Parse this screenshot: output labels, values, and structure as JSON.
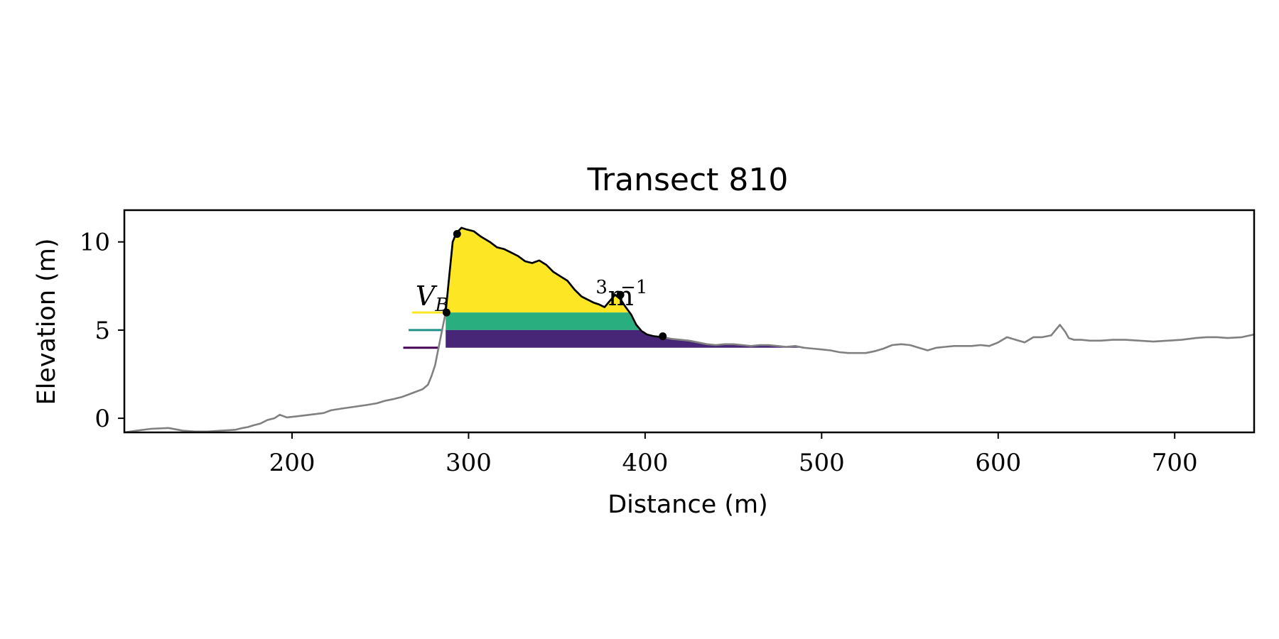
{
  "chart_data": {
    "type": "area",
    "title": "Transect 810",
    "xlabel": "Distance (m)",
    "ylabel": "Elevation (m)",
    "xlim": [
      105,
      745
    ],
    "ylim": [
      -0.8,
      11.8
    ],
    "x_ticks": [
      200,
      300,
      400,
      500,
      600,
      700
    ],
    "y_ticks": [
      0,
      5,
      10
    ],
    "grid": false,
    "annotations": [
      {
        "text": "V",
        "subscript": "B",
        "x": 270,
        "y": 6.4
      },
      {
        "text": "3",
        "x": 372,
        "y": 7.1
      },
      {
        "text": "m",
        "x": 379,
        "y": 6.4
      },
      {
        "text": "−1",
        "x": 386,
        "y": 7.1
      }
    ],
    "levels": [
      {
        "y": 6.0,
        "x_start": 268,
        "color": "#fde725"
      },
      {
        "y": 5.0,
        "x_start": 266,
        "color": "#21918c"
      },
      {
        "y": 4.0,
        "x_start": 263,
        "color": "#440154"
      }
    ],
    "bands": [
      {
        "from": 6.0,
        "to": null,
        "x_range": [
          287,
          400
        ],
        "color": "#fde725"
      },
      {
        "from": 5.0,
        "to": 6.0,
        "x_range": [
          287,
          400
        ],
        "color": "#29af7f"
      },
      {
        "from": 4.0,
        "to": 5.0,
        "x_range": [
          287,
          490
        ],
        "color": "#482677"
      }
    ],
    "series": [
      {
        "color": "#808080",
        "x": [
          105,
          112,
          120,
          130,
          138,
          145,
          152,
          160,
          168,
          172,
          175,
          178,
          182,
          186,
          190,
          193,
          197,
          202,
          210,
          218,
          222,
          228,
          235,
          242,
          248,
          253,
          258,
          262,
          266,
          270,
          274,
          277,
          279,
          281,
          283,
          285,
          287,
          289,
          291,
          293,
          296,
          299,
          303,
          307,
          312,
          316,
          320,
          324,
          328,
          332,
          336,
          340,
          344,
          348,
          352,
          356,
          360,
          364,
          368,
          371,
          374,
          377,
          380,
          383,
          386,
          389,
          392,
          395,
          398,
          401,
          405,
          410,
          415,
          420,
          425,
          430,
          435,
          440,
          445,
          450,
          455,
          460,
          465,
          470,
          475,
          480,
          485,
          490,
          495,
          500,
          505,
          510,
          515,
          520,
          525,
          530,
          535,
          540,
          545,
          550,
          555,
          560,
          565,
          570,
          575,
          580,
          585,
          590,
          595,
          600,
          605,
          610,
          615,
          620,
          625,
          630,
          635,
          638,
          640,
          643,
          647,
          652,
          658,
          665,
          672,
          680,
          688,
          696,
          704,
          712,
          718,
          724,
          730,
          738,
          745
        ],
        "y": [
          -0.8,
          -0.7,
          -0.6,
          -0.55,
          -0.7,
          -0.75,
          -0.75,
          -0.7,
          -0.65,
          -0.55,
          -0.5,
          -0.4,
          -0.3,
          -0.1,
          0.0,
          0.2,
          0.05,
          0.1,
          0.2,
          0.3,
          0.45,
          0.55,
          0.65,
          0.75,
          0.85,
          1.0,
          1.1,
          1.2,
          1.35,
          1.5,
          1.65,
          1.9,
          2.4,
          3.0,
          4.0,
          5.0,
          6.0,
          8.0,
          10.0,
          10.5,
          10.8,
          10.7,
          10.6,
          10.3,
          10.0,
          9.7,
          9.6,
          9.4,
          9.2,
          8.9,
          8.8,
          8.95,
          8.7,
          8.3,
          8.05,
          7.8,
          7.3,
          6.9,
          6.7,
          6.55,
          6.45,
          6.3,
          6.65,
          7.0,
          6.75,
          6.3,
          5.9,
          5.3,
          4.95,
          4.75,
          4.65,
          4.6,
          4.5,
          4.45,
          4.4,
          4.3,
          4.2,
          4.15,
          4.2,
          4.2,
          4.15,
          4.1,
          4.15,
          4.15,
          4.1,
          4.05,
          4.1,
          4.0,
          3.95,
          3.9,
          3.85,
          3.75,
          3.7,
          3.7,
          3.7,
          3.8,
          3.95,
          4.15,
          4.2,
          4.15,
          4.0,
          3.85,
          4.0,
          4.05,
          4.1,
          4.1,
          4.1,
          4.15,
          4.1,
          4.3,
          4.6,
          4.45,
          4.3,
          4.6,
          4.6,
          4.7,
          5.3,
          4.9,
          4.55,
          4.45,
          4.45,
          4.4,
          4.4,
          4.45,
          4.45,
          4.4,
          4.35,
          4.4,
          4.45,
          4.55,
          4.6,
          4.6,
          4.55,
          4.6,
          4.75
        ]
      },
      {
        "color": "#000000",
        "x": [
          287,
          289,
          291,
          293,
          296,
          299,
          303,
          307,
          312,
          316,
          320,
          324,
          328,
          332,
          336,
          340,
          344,
          348,
          352,
          356,
          360,
          364,
          368,
          371,
          374,
          377,
          380,
          383,
          386,
          389,
          392,
          395,
          398,
          401,
          405,
          410
        ],
        "y": [
          6.0,
          8.0,
          10.0,
          10.5,
          10.8,
          10.7,
          10.6,
          10.3,
          10.0,
          9.7,
          9.6,
          9.4,
          9.2,
          8.9,
          8.8,
          8.95,
          8.7,
          8.3,
          8.05,
          7.8,
          7.3,
          6.9,
          6.7,
          6.55,
          6.45,
          6.3,
          6.65,
          7.0,
          6.75,
          6.3,
          5.9,
          5.3,
          4.95,
          4.75,
          4.65,
          4.6
        ]
      }
    ],
    "markers": [
      {
        "x": 287.5,
        "y": 6.0
      },
      {
        "x": 293.5,
        "y": 10.45
      },
      {
        "x": 386,
        "y": 7.0
      },
      {
        "x": 410,
        "y": 4.65
      }
    ]
  }
}
